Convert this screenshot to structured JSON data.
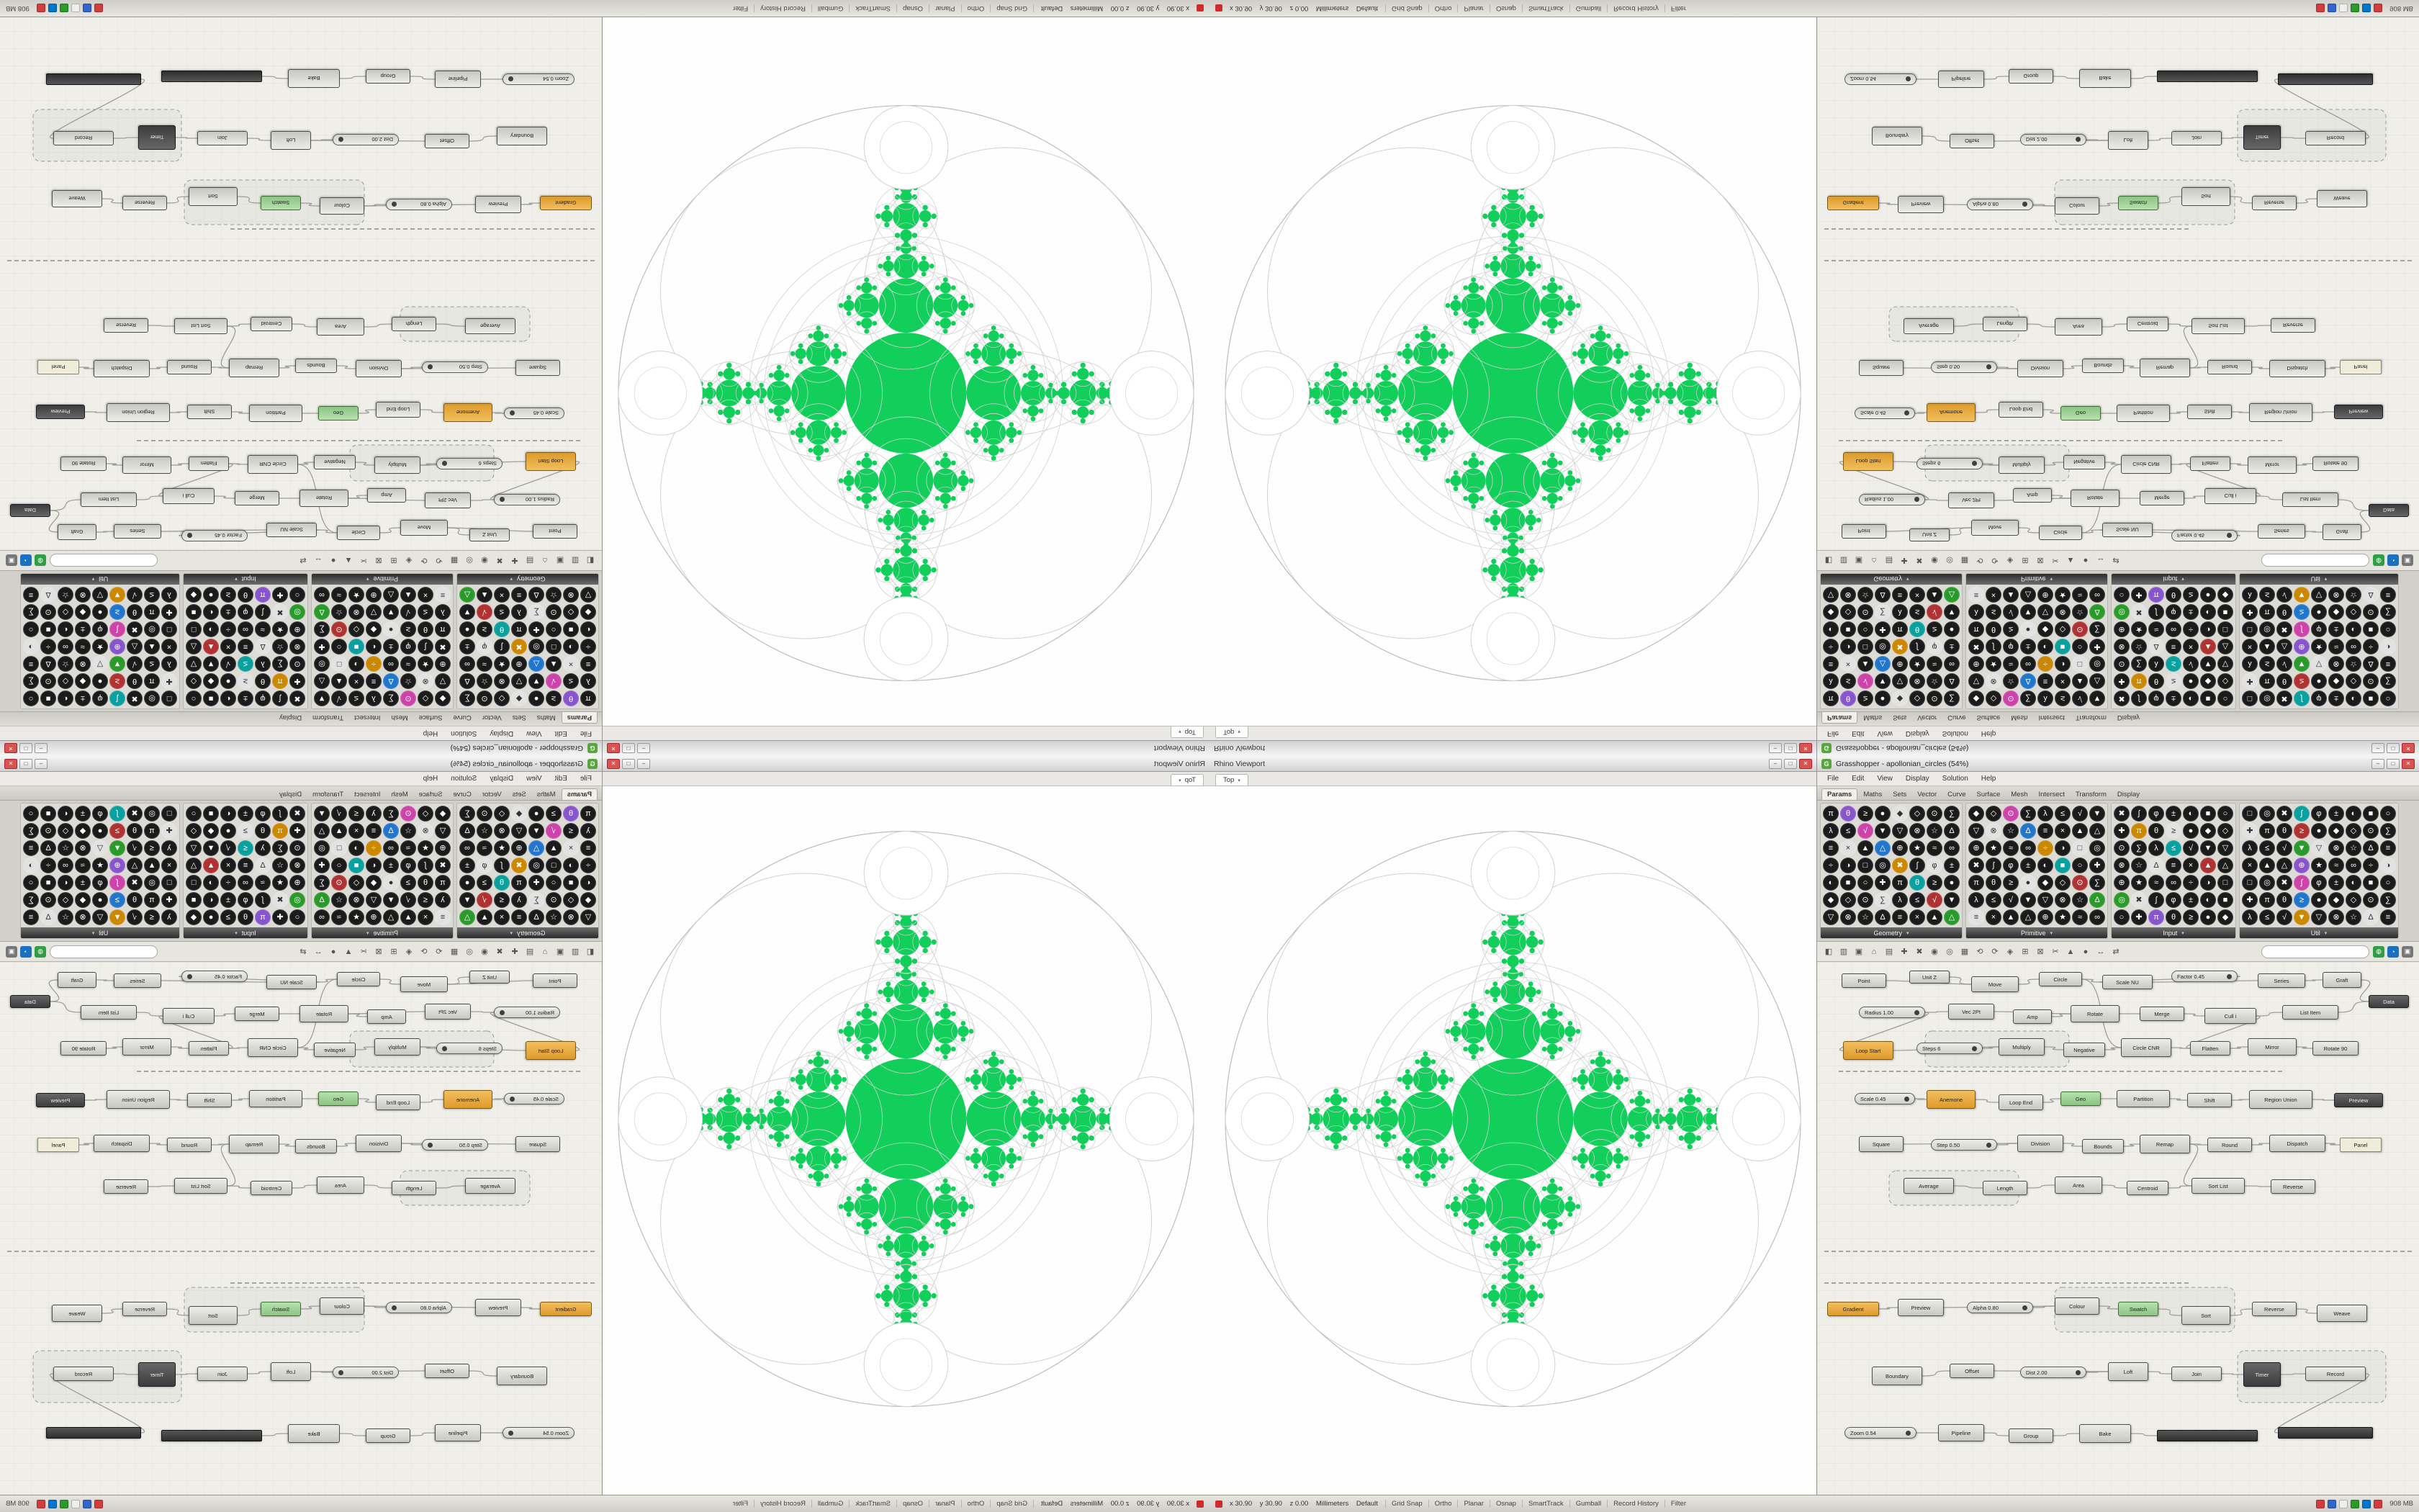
{
  "win_buttons": [
    "–",
    "□",
    "✕"
  ],
  "gh": {
    "icon_letter": "G",
    "title": "Grasshopper - apollonian_circles (54%)",
    "menus": [
      "File",
      "Edit",
      "View",
      "Display",
      "Solution",
      "Help"
    ],
    "tabs": [
      "Params",
      "Maths",
      "Sets",
      "Vector",
      "Curve",
      "Surface",
      "Mesh",
      "Intersect",
      "Transform",
      "Display"
    ],
    "active_tab": "Params",
    "palette": {
      "sections": [
        {
          "label": "Geometry",
          "cols": 8,
          "rows": 7,
          "seed": 3
        },
        {
          "label": "Primitive",
          "cols": 8,
          "rows": 7,
          "seed": 11
        },
        {
          "label": "Input",
          "cols": 7,
          "rows": 7,
          "seed": 23
        },
        {
          "label": "Util",
          "cols": 9,
          "rows": 7,
          "seed": 37
        }
      ],
      "glyphs": "●◐◑▲▼◆■□△▽◇○◎⊕⊗⊙✚✖★☆∑π∫≈Δλθφ∞≡≤≥±÷×√",
      "icon_colors": [
        "#b03333",
        "#2277cc",
        "#2a9a2a",
        "#cc8800",
        "#8855cc",
        "#0aa0a0",
        "#cc44aa"
      ],
      "more_glyph": "▾"
    },
    "toolbar": {
      "left_icons": [
        "◧",
        "▥"
      ],
      "icons": [
        "▣",
        "⌂",
        "▤",
        "✚",
        "✖",
        "◉",
        "◎",
        "▦",
        "⟲",
        "⟳",
        "◈",
        "⊞",
        "⊠",
        "✂",
        "▲",
        "●",
        "↔",
        "⇄"
      ],
      "search_placeholder": "",
      "right_icons": [
        "◍",
        "◔",
        "▣"
      ],
      "right_colors": [
        "#2f9e44",
        "#1971c2",
        "#777777"
      ]
    },
    "canvas": {
      "nodes": [
        [
          34,
          16,
          62,
          20,
          "c",
          "Point"
        ],
        [
          128,
          12,
          56,
          18,
          "c",
          "Unit Z"
        ],
        [
          214,
          20,
          66,
          22,
          "c",
          "Move"
        ],
        [
          308,
          14,
          60,
          20,
          "c",
          "Circle"
        ],
        [
          396,
          18,
          70,
          20,
          "c",
          "Scale NU"
        ],
        [
          492,
          12,
          92,
          16,
          "s",
          "Factor 0.45"
        ],
        [
          612,
          16,
          66,
          20,
          "c",
          "Series"
        ],
        [
          702,
          14,
          54,
          22,
          "c",
          "Graft"
        ],
        [
          766,
          46,
          56,
          18,
          "d",
          "Data"
        ],
        [
          58,
          62,
          92,
          16,
          "s",
          "Radius 1.00"
        ],
        [
          182,
          58,
          64,
          22,
          "c",
          "Vec 2Pt"
        ],
        [
          272,
          66,
          54,
          20,
          "c",
          "Amp"
        ],
        [
          352,
          60,
          68,
          24,
          "c",
          "Rotate"
        ],
        [
          448,
          62,
          62,
          20,
          "c",
          "Merge"
        ],
        [
          538,
          64,
          72,
          22,
          "c",
          "Cull i"
        ],
        [
          646,
          60,
          78,
          20,
          "c",
          "List Item"
        ],
        [
          36,
          110,
          70,
          26,
          "o",
          "Loop Start"
        ],
        [
          138,
          112,
          92,
          16,
          "s",
          "Steps 6"
        ],
        [
          252,
          106,
          64,
          24,
          "c",
          "Multiply"
        ],
        [
          342,
          112,
          58,
          20,
          "c",
          "Negative"
        ],
        [
          422,
          106,
          70,
          26,
          "c",
          "Circle CNR"
        ],
        [
          518,
          110,
          56,
          20,
          "c",
          "Flatten"
        ],
        [
          598,
          106,
          68,
          24,
          "c",
          "Mirror"
        ],
        [
          688,
          110,
          64,
          20,
          "c",
          "Rotate 90"
        ],
        [
          52,
          182,
          84,
          16,
          "s",
          "Scale 0.45"
        ],
        [
          152,
          178,
          68,
          26,
          "o",
          "Anemone"
        ],
        [
          252,
          184,
          62,
          22,
          "c",
          "Loop End"
        ],
        [
          338,
          180,
          56,
          20,
          "g",
          "Geo"
        ],
        [
          416,
          178,
          74,
          24,
          "c",
          "Partition"
        ],
        [
          514,
          182,
          62,
          20,
          "c",
          "Shift"
        ],
        [
          600,
          178,
          88,
          26,
          "c",
          "Region Union"
        ],
        [
          718,
          182,
          68,
          20,
          "d",
          "Preview"
        ],
        [
          58,
          242,
          62,
          22,
          "c",
          "Square"
        ],
        [
          158,
          246,
          92,
          16,
          "s",
          "Step 0.50"
        ],
        [
          278,
          240,
          64,
          24,
          "c",
          "Division"
        ],
        [
          368,
          246,
          58,
          20,
          "c",
          "Bounds"
        ],
        [
          448,
          240,
          70,
          26,
          "c",
          "Remap"
        ],
        [
          542,
          244,
          62,
          20,
          "c",
          "Round"
        ],
        [
          628,
          240,
          78,
          24,
          "c",
          "Dispatch"
        ],
        [
          726,
          244,
          58,
          20,
          "p",
          "Panel"
        ],
        [
          120,
          300,
          70,
          22,
          "c",
          "Average"
        ],
        [
          230,
          304,
          62,
          20,
          "c",
          "Length"
        ],
        [
          330,
          298,
          66,
          24,
          "c",
          "Area"
        ],
        [
          430,
          304,
          58,
          20,
          "c",
          "Centroid"
        ],
        [
          520,
          300,
          74,
          22,
          "c",
          "Sort List"
        ],
        [
          630,
          302,
          62,
          20,
          "c",
          "Reverse"
        ],
        [
          14,
          472,
          72,
          20,
          "o",
          "Gradient"
        ],
        [
          112,
          468,
          64,
          24,
          "c",
          "Preview"
        ],
        [
          208,
          472,
          92,
          16,
          "s",
          "Alpha 0.80"
        ],
        [
          330,
          466,
          62,
          24,
          "c",
          "Colour"
        ],
        [
          418,
          472,
          56,
          20,
          "g",
          "Swatch"
        ],
        [
          506,
          478,
          68,
          26,
          "c",
          "Sort"
        ],
        [
          604,
          472,
          62,
          20,
          "c",
          "Reverse"
        ],
        [
          694,
          476,
          70,
          24,
          "c",
          "Weave"
        ],
        [
          76,
          562,
          70,
          26,
          "c",
          "Boundary"
        ],
        [
          184,
          558,
          62,
          20,
          "c",
          "Offset"
        ],
        [
          282,
          562,
          92,
          16,
          "s",
          "Dist 2.00"
        ],
        [
          404,
          556,
          56,
          26,
          "c",
          "Loft"
        ],
        [
          492,
          562,
          70,
          20,
          "c",
          "Join"
        ],
        [
          592,
          556,
          52,
          34,
          "d",
          "Timer"
        ],
        [
          678,
          562,
          84,
          20,
          "c",
          "Record"
        ],
        [
          38,
          646,
          100,
          16,
          "s",
          "Zoom 0.54"
        ],
        [
          168,
          642,
          64,
          24,
          "c",
          "Pipeline"
        ],
        [
          266,
          648,
          62,
          20,
          "c",
          "Group"
        ],
        [
          364,
          642,
          72,
          26,
          "c",
          "Bake"
        ],
        [
          472,
          650,
          140,
          16,
          "b",
          ""
        ],
        [
          640,
          646,
          132,
          16,
          "b",
          ""
        ]
      ],
      "links": [
        [
          0,
          2
        ],
        [
          1,
          2
        ],
        [
          2,
          3
        ],
        [
          3,
          4
        ],
        [
          5,
          4
        ],
        [
          4,
          6
        ],
        [
          6,
          7
        ],
        [
          7,
          8
        ],
        [
          9,
          10
        ],
        [
          10,
          12
        ],
        [
          11,
          12
        ],
        [
          12,
          13
        ],
        [
          13,
          14
        ],
        [
          14,
          15
        ],
        [
          15,
          8
        ],
        [
          16,
          18
        ],
        [
          17,
          18
        ],
        [
          18,
          19
        ],
        [
          19,
          20
        ],
        [
          20,
          21
        ],
        [
          21,
          22
        ],
        [
          22,
          23
        ],
        [
          9,
          16
        ],
        [
          24,
          25
        ],
        [
          25,
          26
        ],
        [
          26,
          27
        ],
        [
          27,
          28
        ],
        [
          28,
          29
        ],
        [
          29,
          30
        ],
        [
          30,
          31
        ],
        [
          32,
          34
        ],
        [
          33,
          34
        ],
        [
          34,
          35
        ],
        [
          35,
          36
        ],
        [
          36,
          37
        ],
        [
          37,
          38
        ],
        [
          38,
          39
        ],
        [
          40,
          41
        ],
        [
          41,
          42
        ],
        [
          42,
          43
        ],
        [
          43,
          44
        ],
        [
          44,
          45
        ],
        [
          3,
          20
        ],
        [
          14,
          21
        ],
        [
          36,
          44
        ],
        [
          46,
          47
        ],
        [
          47,
          49
        ],
        [
          48,
          49
        ],
        [
          49,
          50
        ],
        [
          50,
          51
        ],
        [
          51,
          52
        ],
        [
          52,
          53
        ],
        [
          54,
          55
        ],
        [
          55,
          57
        ],
        [
          56,
          57
        ],
        [
          57,
          58
        ],
        [
          58,
          59
        ],
        [
          59,
          60
        ],
        [
          61,
          62
        ],
        [
          62,
          63
        ],
        [
          63,
          64
        ],
        [
          64,
          65
        ],
        [
          60,
          66
        ]
      ],
      "dashes": [
        [
          [
            30,
            152
          ],
          [
            650,
            152
          ]
        ],
        [
          [
            10,
            402
          ],
          [
            826,
            402
          ]
        ],
        [
          [
            10,
            446
          ],
          [
            520,
            446
          ]
        ]
      ],
      "groups": [
        [
          330,
          452,
          250,
          62
        ],
        [
          150,
          96,
          200,
          50
        ],
        [
          584,
          540,
          206,
          72
        ],
        [
          100,
          290,
          180,
          48
        ]
      ],
      "wire_color": "#8f8f8f",
      "dash_color": "#777777"
    }
  },
  "viewport": {
    "title": "Rhino Viewport",
    "tab": "Top",
    "tab_chevron": "▾",
    "fractal": {
      "green": "#12ce5b",
      "outline": "#d2d2d2",
      "outline_strong": "#bdbdbd",
      "r0_ratio": 0.21,
      "k": 0.45,
      "min_r": 1.8,
      "tip_ratio": 0.146,
      "diag_ratio": 0.5,
      "bridge": [
        [
          0.615,
          0.046
        ],
        [
          0.715,
          0.022
        ]
      ],
      "extra_rings": [
        1.5,
        2.05,
        2.6
      ]
    }
  },
  "statusbar": {
    "left": "x 30.90    y 30.90    z 0.00    Millimeters    Default",
    "segments": [
      "Grid Snap",
      "Ortho",
      "Planar",
      "Osnap",
      "SmartTrack",
      "Gumball",
      "Record History",
      "Filter"
    ],
    "tray_colors": [
      "#d33c3c",
      "#3366cc",
      "#eeeeee",
      "#2a9a2a",
      "#0077cc",
      "#d33c3c"
    ],
    "right": "908 MB"
  }
}
